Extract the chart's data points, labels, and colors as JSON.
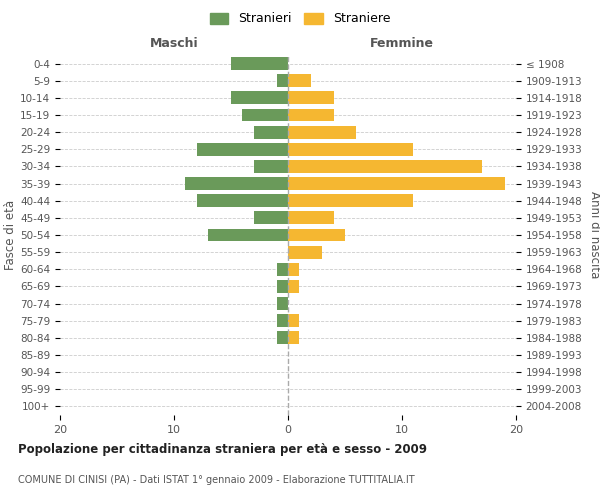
{
  "age_groups": [
    "0-4",
    "5-9",
    "10-14",
    "15-19",
    "20-24",
    "25-29",
    "30-34",
    "35-39",
    "40-44",
    "45-49",
    "50-54",
    "55-59",
    "60-64",
    "65-69",
    "70-74",
    "75-79",
    "80-84",
    "85-89",
    "90-94",
    "95-99",
    "100+"
  ],
  "birth_years": [
    "2004-2008",
    "1999-2003",
    "1994-1998",
    "1989-1993",
    "1984-1988",
    "1979-1983",
    "1974-1978",
    "1969-1973",
    "1964-1968",
    "1959-1963",
    "1954-1958",
    "1949-1953",
    "1944-1948",
    "1939-1943",
    "1934-1938",
    "1929-1933",
    "1924-1928",
    "1919-1923",
    "1914-1918",
    "1909-1913",
    "≤ 1908"
  ],
  "maschi": [
    5,
    1,
    5,
    4,
    3,
    8,
    3,
    9,
    8,
    3,
    7,
    0,
    1,
    1,
    1,
    1,
    1,
    0,
    0,
    0,
    0
  ],
  "femmine": [
    0,
    2,
    4,
    4,
    6,
    11,
    17,
    19,
    11,
    4,
    5,
    3,
    1,
    1,
    0,
    1,
    1,
    0,
    0,
    0,
    0
  ],
  "color_maschi": "#6a9a5a",
  "color_femmine": "#f5b731",
  "title": "Popolazione per cittadinanza straniera per età e sesso - 2009",
  "subtitle": "COMUNE DI CINISI (PA) - Dati ISTAT 1° gennaio 2009 - Elaborazione TUTTITALIA.IT",
  "xlabel_left": "Maschi",
  "xlabel_right": "Femmine",
  "ylabel_left": "Fasce di età",
  "ylabel_right": "Anni di nascita",
  "legend_stranieri": "Stranieri",
  "legend_straniere": "Straniere",
  "xlim": 20,
  "background_color": "#ffffff",
  "grid_color": "#cccccc"
}
